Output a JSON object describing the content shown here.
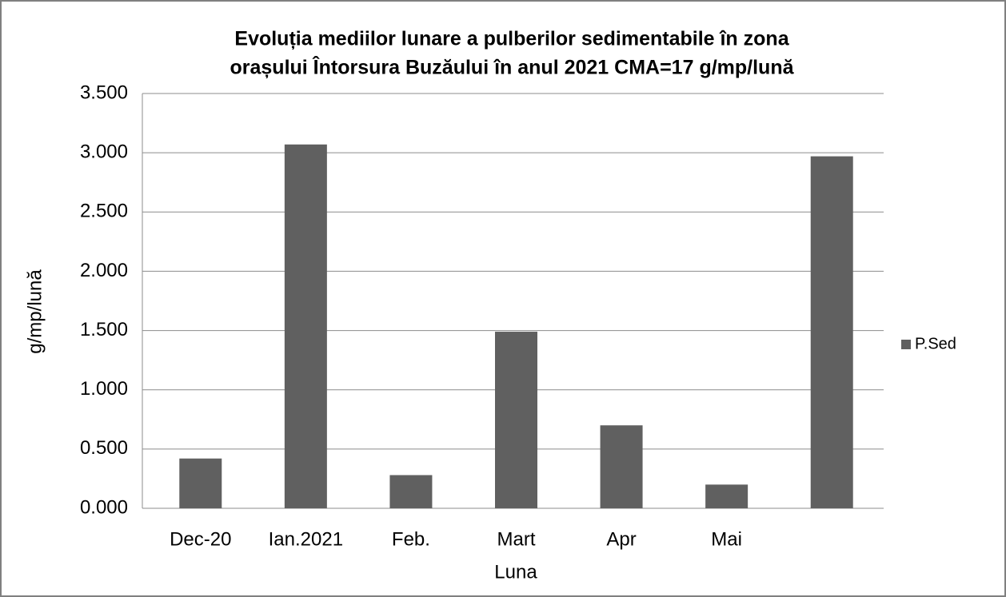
{
  "chart_data": {
    "type": "bar",
    "title": [
      "Evoluția mediilor lunare a pulberilor  sedimentabile în zona",
      "orașului  Întorsura Buzăului în anul 2021  CMA=17 g/mp/lună"
    ],
    "y_label": "g/mp/lună",
    "x_label": "Luna",
    "categories": [
      "Dec-20",
      "Ian.2021",
      "Feb.",
      "Mart",
      "Apr",
      "Mai",
      null
    ],
    "series": [
      {
        "name": "P.Sed",
        "color": "#606060",
        "values": [
          0.42,
          3.07,
          0.28,
          1.49,
          0.7,
          0.2,
          2.97
        ]
      }
    ],
    "ylim": [
      0,
      3.5
    ],
    "yticks": [
      {
        "value": 0,
        "label": "0.000"
      },
      {
        "value": 0.5,
        "label": "0.500"
      },
      {
        "value": 1,
        "label": "1.000"
      },
      {
        "value": 1.5,
        "label": "1.500"
      },
      {
        "value": 2,
        "label": "2.000"
      },
      {
        "value": 2.5,
        "label": "2.500"
      },
      {
        "value": 3,
        "label": "3.000"
      },
      {
        "value": 3.5,
        "label": "3.500"
      }
    ],
    "grid": true,
    "legend": "right"
  }
}
